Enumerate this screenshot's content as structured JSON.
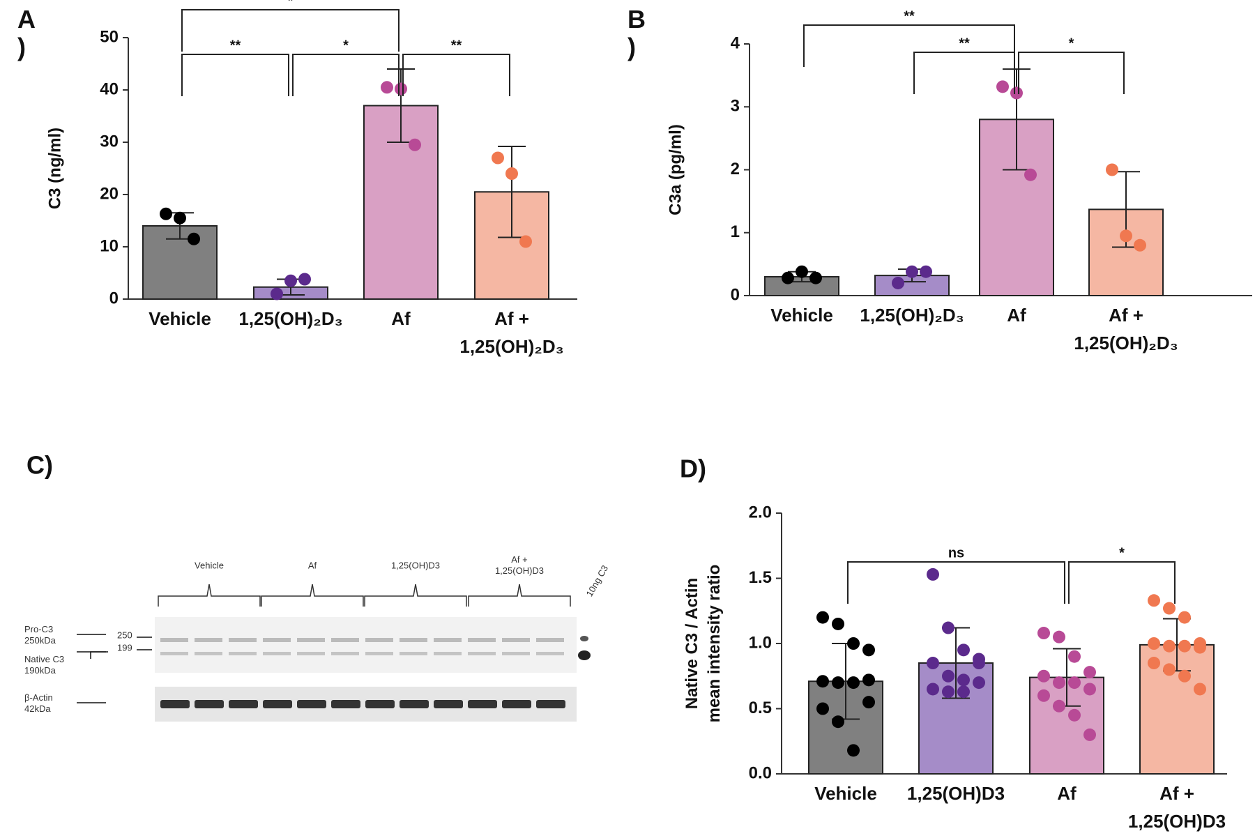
{
  "chart_data": [
    {
      "type": "bar",
      "panel_label": "A\n)",
      "ylabel": "C3 (ng/ml)",
      "categories": [
        "Vehicle",
        "1,25(OH)₂D₃",
        "Af",
        "Af +\n1,25(OH)₂D₃"
      ],
      "values": [
        14,
        2.3,
        37,
        20.5
      ],
      "errors": [
        2.5,
        1.5,
        7,
        8.7
      ],
      "colors": [
        "#808080",
        "#a58cc8",
        "#d9a0c4",
        "#f5b7a3"
      ],
      "point_colors": [
        "#000000",
        "#5b2a8c",
        "#b84a96",
        "#f07850"
      ],
      "points": [
        [
          16.3,
          15.5,
          11.5
        ],
        [
          1,
          3.5,
          3.8
        ],
        [
          40.5,
          40.2,
          29.5
        ],
        [
          27,
          24,
          11
        ]
      ],
      "significance": [
        "*",
        "**",
        "*",
        "**"
      ],
      "ylim": [
        0,
        50
      ],
      "yticks": [
        0,
        10,
        20,
        30,
        40,
        50
      ]
    },
    {
      "type": "bar",
      "panel_label": "B\n)",
      "ylabel": "C3a (pg/ml)",
      "categories": [
        "Vehicle",
        "1,25(OH)₂D₃",
        "Af",
        "Af +\n1,25(OH)₂D₃"
      ],
      "values": [
        0.3,
        0.32,
        2.8,
        1.37
      ],
      "errors": [
        0.08,
        0.1,
        0.8,
        0.6
      ],
      "colors": [
        "#808080",
        "#a58cc8",
        "#d9a0c4",
        "#f5b7a3"
      ],
      "point_colors": [
        "#000000",
        "#5b2a8c",
        "#b84a96",
        "#f07850"
      ],
      "points": [
        [
          0.28,
          0.38,
          0.28
        ],
        [
          0.2,
          0.38,
          0.38
        ],
        [
          3.32,
          3.22,
          1.92
        ],
        [
          2.0,
          0.95,
          0.8
        ]
      ],
      "significance": [
        "**",
        "**",
        "*"
      ],
      "ylim": [
        0,
        4
      ],
      "yticks": [
        0,
        1,
        2,
        3,
        4
      ]
    },
    {
      "type": "bar",
      "panel_label": "D)",
      "ylabel": "Native C3 / Actin\nmean intensity ratio",
      "categories": [
        "Vehicle",
        "1,25(OH)D3",
        "Af",
        "Af +\n1,25(OH)D3"
      ],
      "values": [
        0.71,
        0.85,
        0.74,
        0.99
      ],
      "errors": [
        0.29,
        0.27,
        0.22,
        0.2
      ],
      "colors": [
        "#808080",
        "#a58cc8",
        "#d9a0c4",
        "#f5b7a3"
      ],
      "point_colors": [
        "#000000",
        "#5b2a8c",
        "#b84a96",
        "#f07850"
      ],
      "points": [
        [
          1.2,
          1.15,
          1.0,
          0.95,
          0.71,
          0.7,
          0.7,
          0.55,
          0.5,
          0.4,
          0.18,
          0.72
        ],
        [
          1.53,
          1.12,
          0.95,
          0.85,
          0.85,
          0.75,
          0.72,
          0.7,
          0.65,
          0.63,
          0.63,
          0.88
        ],
        [
          1.08,
          1.05,
          0.9,
          0.78,
          0.75,
          0.7,
          0.7,
          0.65,
          0.6,
          0.52,
          0.45,
          0.3
        ],
        [
          1.33,
          1.27,
          1.2,
          1.0,
          1.0,
          0.98,
          0.98,
          0.97,
          0.85,
          0.8,
          0.75,
          0.65
        ]
      ],
      "significance": [
        "ns",
        "*"
      ],
      "ylim": [
        0,
        2
      ],
      "yticks": [
        {
          "value": 0,
          "label": "0.0"
        },
        0.5,
        {
          "value": 1,
          "label": "1.0"
        },
        1.5,
        {
          "value": 2,
          "label": "2.0"
        }
      ]
    }
  ],
  "blot": {
    "panel_label": "C)",
    "groups": [
      "Vehicle",
      "Af",
      "1,25(OH)D3",
      "Af +\n1,25(OH)D3"
    ],
    "standard": "10ng C3",
    "bands": [
      "Pro-C3\n250kDa",
      "Native C3\n190kDa",
      "β-Actin\n42kDa"
    ],
    "markers": [
      "250",
      "199"
    ]
  }
}
